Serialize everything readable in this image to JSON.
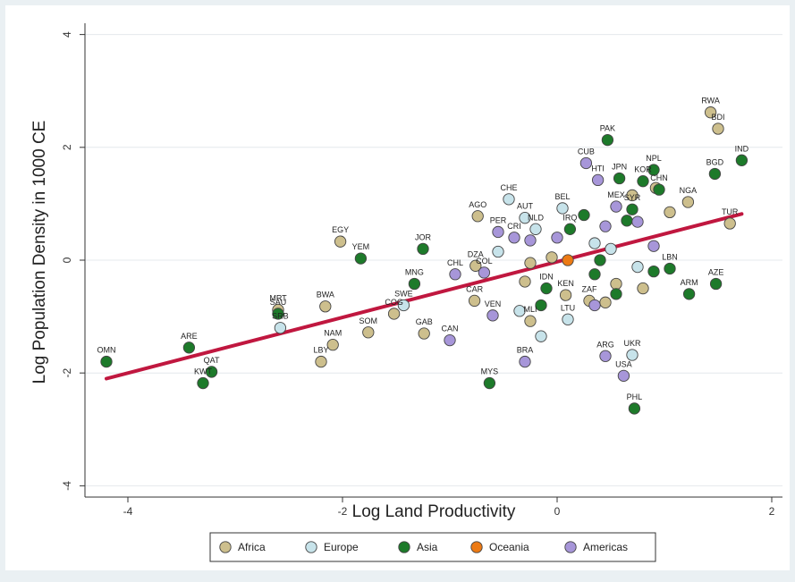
{
  "chart_data": {
    "type": "scatter",
    "xlabel": "Log Land Productivity",
    "ylabel": "Log Population Density in 1000 CE",
    "xlim": [
      -4.4,
      2.1
    ],
    "ylim": [
      -4.2,
      4.2
    ],
    "xticks": [
      "-4",
      "-2",
      "0",
      "2"
    ],
    "yticks": [
      "-4",
      "-2",
      "0",
      "2",
      "4"
    ],
    "xtick_values": [
      -4,
      -2,
      0,
      2
    ],
    "ytick_values": [
      -4,
      -2,
      0,
      2,
      4
    ],
    "grid": "y-major",
    "legend_position": "bottom",
    "colors": {
      "Africa": "#cdbf8d",
      "Europe": "#c7e3ea",
      "Asia": "#1d7a2a",
      "Oceania": "#ec7a14",
      "Americas": "#a796d9",
      "fit_line": "#c0173f"
    },
    "series": [
      {
        "name": "Africa",
        "points": [
          {
            "label": "RWA",
            "x": 1.43,
            "y": 2.62
          },
          {
            "label": "BDI",
            "x": 1.5,
            "y": 2.33
          },
          {
            "label": "NGA",
            "x": 1.22,
            "y": 1.03
          },
          {
            "label": "TUR",
            "x": 1.61,
            "y": 0.65
          },
          {
            "label": "EGY",
            "x": -2.02,
            "y": 0.33
          },
          {
            "label": "AGO",
            "x": -0.74,
            "y": 0.78
          },
          {
            "label": "DZA",
            "x": -0.76,
            "y": -0.1
          },
          {
            "label": "CAR",
            "x": -0.77,
            "y": -0.72
          },
          {
            "label": "BWA",
            "x": -2.16,
            "y": -0.82
          },
          {
            "label": "SOM",
            "x": -1.76,
            "y": -1.28
          },
          {
            "label": "NAM",
            "x": -2.09,
            "y": -1.5
          },
          {
            "label": "LBY",
            "x": -2.2,
            "y": -1.8
          },
          {
            "label": "GAB",
            "x": -1.24,
            "y": -1.3
          },
          {
            "label": "COG",
            "x": -1.52,
            "y": -0.95
          },
          {
            "label": "MRT",
            "x": -2.6,
            "y": -0.88
          },
          {
            "label": "KEN",
            "x": 0.08,
            "y": -0.62
          },
          {
            "label": "MLI",
            "x": -0.25,
            "y": -1.08
          },
          {
            "label": "ZAF",
            "x": 0.3,
            "y": -0.72
          },
          {
            "label": "",
            "x": -0.25,
            "y": -0.05
          },
          {
            "label": "",
            "x": -0.3,
            "y": -0.38
          },
          {
            "label": "",
            "x": 0.55,
            "y": -0.42
          },
          {
            "label": "",
            "x": 0.8,
            "y": -0.5
          },
          {
            "label": "",
            "x": 0.92,
            "y": 1.28
          },
          {
            "label": "",
            "x": 1.05,
            "y": 0.85
          },
          {
            "label": "",
            "x": 0.45,
            "y": -0.75
          },
          {
            "label": "",
            "x": -0.05,
            "y": 0.05
          },
          {
            "label": "",
            "x": 0.7,
            "y": 1.15
          }
        ]
      },
      {
        "name": "Europe",
        "points": [
          {
            "label": "CHE",
            "x": -0.45,
            "y": 1.08
          },
          {
            "label": "AUT",
            "x": -0.3,
            "y": 0.75
          },
          {
            "label": "BEL",
            "x": 0.05,
            "y": 0.92
          },
          {
            "label": "NLD",
            "x": -0.2,
            "y": 0.55
          },
          {
            "label": "SWE",
            "x": -1.43,
            "y": -0.8
          },
          {
            "label": "SRB",
            "x": -2.58,
            "y": -1.2
          },
          {
            "label": "LTU",
            "x": 0.1,
            "y": -1.05
          },
          {
            "label": "UKR",
            "x": 0.7,
            "y": -1.68
          },
          {
            "label": "",
            "x": -0.15,
            "y": -1.35
          },
          {
            "label": "",
            "x": -0.55,
            "y": 0.15
          },
          {
            "label": "",
            "x": 0.35,
            "y": 0.3
          },
          {
            "label": "",
            "x": 0.75,
            "y": -0.12
          },
          {
            "label": "",
            "x": -0.35,
            "y": -0.9
          },
          {
            "label": "",
            "x": 0.5,
            "y": 0.2
          }
        ]
      },
      {
        "name": "Asia",
        "points": [
          {
            "label": "PAK",
            "x": 0.47,
            "y": 2.13
          },
          {
            "label": "NPL",
            "x": 0.9,
            "y": 1.6
          },
          {
            "label": "IND",
            "x": 1.72,
            "y": 1.77
          },
          {
            "label": "BGD",
            "x": 1.47,
            "y": 1.53
          },
          {
            "label": "JPN",
            "x": 0.58,
            "y": 1.45
          },
          {
            "label": "KOR",
            "x": 0.8,
            "y": 1.4
          },
          {
            "label": "CHN",
            "x": 0.95,
            "y": 1.25
          },
          {
            "label": "OMN",
            "x": -4.2,
            "y": -1.8
          },
          {
            "label": "ARE",
            "x": -3.43,
            "y": -1.55
          },
          {
            "label": "QAT",
            "x": -3.22,
            "y": -1.98
          },
          {
            "label": "KWT",
            "x": -3.3,
            "y": -2.18
          },
          {
            "label": "YEM",
            "x": -1.83,
            "y": 0.03
          },
          {
            "label": "JOR",
            "x": -1.25,
            "y": 0.2
          },
          {
            "label": "MNG",
            "x": -1.33,
            "y": -0.42
          },
          {
            "label": "SAU",
            "x": -2.6,
            "y": -0.95
          },
          {
            "label": "ARM",
            "x": 1.23,
            "y": -0.6
          },
          {
            "label": "AZE",
            "x": 1.48,
            "y": -0.42
          },
          {
            "label": "MYS",
            "x": -0.63,
            "y": -2.18
          },
          {
            "label": "PHL",
            "x": 0.72,
            "y": -2.63
          },
          {
            "label": "IDN",
            "x": -0.1,
            "y": -0.5
          },
          {
            "label": "IRQ",
            "x": 0.12,
            "y": 0.55
          },
          {
            "label": "SYR",
            "x": 0.7,
            "y": 0.9
          },
          {
            "label": "LBN",
            "x": 1.05,
            "y": -0.15
          },
          {
            "label": "",
            "x": 0.35,
            "y": -0.25
          },
          {
            "label": "",
            "x": 0.55,
            "y": -0.6
          },
          {
            "label": "",
            "x": 0.65,
            "y": 0.7
          },
          {
            "label": "",
            "x": 0.9,
            "y": -0.2
          },
          {
            "label": "",
            "x": 0.4,
            "y": 0.0
          },
          {
            "label": "",
            "x": -0.15,
            "y": -0.8
          },
          {
            "label": "",
            "x": 0.25,
            "y": 0.8
          }
        ]
      },
      {
        "name": "Oceania",
        "points": [
          {
            "label": "",
            "x": 0.1,
            "y": 0.0
          }
        ]
      },
      {
        "name": "Americas",
        "points": [
          {
            "label": "CUB",
            "x": 0.27,
            "y": 1.72
          },
          {
            "label": "HTI",
            "x": 0.38,
            "y": 1.42
          },
          {
            "label": "MEX",
            "x": 0.55,
            "y": 0.95
          },
          {
            "label": "PER",
            "x": -0.55,
            "y": 0.5
          },
          {
            "label": "CRI",
            "x": -0.4,
            "y": 0.4
          },
          {
            "label": "CHL",
            "x": -0.95,
            "y": -0.25
          },
          {
            "label": "COL",
            "x": -0.68,
            "y": -0.22
          },
          {
            "label": "VEN",
            "x": -0.6,
            "y": -0.98
          },
          {
            "label": "CAN",
            "x": -1.0,
            "y": -1.42
          },
          {
            "label": "BRA",
            "x": -0.3,
            "y": -1.8
          },
          {
            "label": "ARG",
            "x": 0.45,
            "y": -1.7
          },
          {
            "label": "USA",
            "x": 0.62,
            "y": -2.05
          },
          {
            "label": "",
            "x": 0.35,
            "y": -0.8
          },
          {
            "label": "",
            "x": 0.9,
            "y": 0.25
          },
          {
            "label": "",
            "x": 0.0,
            "y": 0.4
          },
          {
            "label": "",
            "x": -0.25,
            "y": 0.35
          },
          {
            "label": "",
            "x": 0.45,
            "y": 0.6
          },
          {
            "label": "",
            "x": 0.75,
            "y": 0.68
          }
        ]
      }
    ],
    "fit_line": {
      "x": [
        -4.2,
        1.72
      ],
      "y": [
        -2.1,
        0.82
      ]
    },
    "legend": [
      "Africa",
      "Europe",
      "Asia",
      "Oceania",
      "Americas"
    ]
  }
}
